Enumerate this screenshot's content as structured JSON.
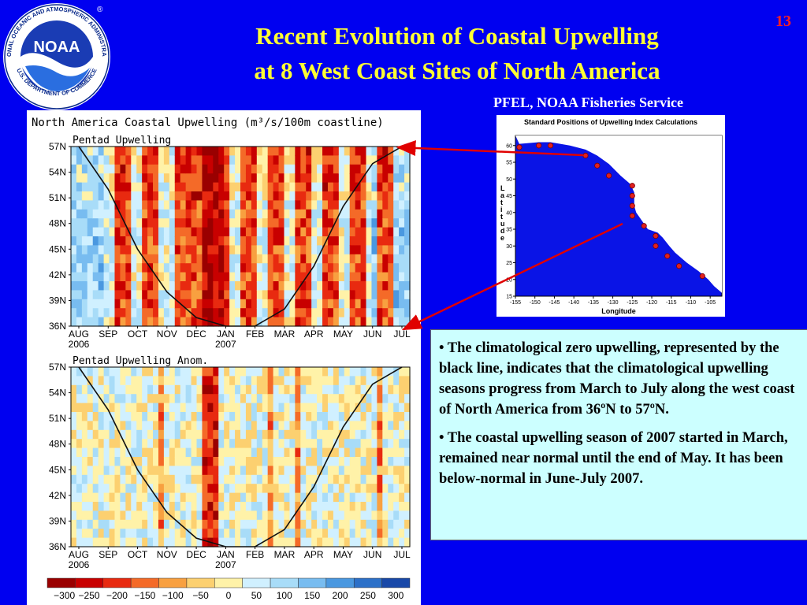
{
  "slide": {
    "title_line1": "Recent Evolution of Coastal Upwelling",
    "title_line2": "at 8 West Coast Sites of North America",
    "number": "13",
    "source": "PFEL, NOAA Fisheries Service"
  },
  "logo": {
    "center_text": "NOAA",
    "ring_top": "NATIONAL OCEANIC AND ATMOSPHERIC ADMINISTRATION",
    "ring_bottom": "U.S. DEPARTMENT OF COMMERCE"
  },
  "text_box": {
    "bullet1": "• The climatological zero upwelling, represented by the black line, indicates that the climatological upwelling seasons progress from March to July along the west coast of North America from 36ºN to 57ºN.",
    "bullet2": "• The coastal upwelling season of 2007 started in March, remained near normal until the end of May. It has been below-normal in June-July 2007."
  },
  "chart_data": [
    {
      "type": "heatmap",
      "title": "North America Coastal Upwelling (m³/s/100m coastline)",
      "subtitle": "Pentad Upwelling",
      "x_tick_labels": [
        "AUG",
        "SEP",
        "OCT",
        "NOV",
        "DEC",
        "JAN",
        "FEB",
        "MAR",
        "APR",
        "MAY",
        "JUN",
        "JUL"
      ],
      "x_year_labels": [
        {
          "month": "AUG",
          "year": "2006"
        },
        {
          "month": "JAN",
          "year": "2007"
        }
      ],
      "y_tick_labels": [
        "57N",
        "54N",
        "51N",
        "48N",
        "45N",
        "42N",
        "39N",
        "36N"
      ],
      "y_values": [
        57,
        54,
        51,
        48,
        45,
        42,
        39,
        36
      ],
      "zero_line_months": {
        "AUG": 57,
        "SEP": 52,
        "OCT": 45,
        "NOV": 40,
        "DEC": 37,
        "JAN": 36,
        "FEB": 36,
        "MAR": 38,
        "APR": 43,
        "MAY": 50,
        "JUN": 55,
        "JUL": 57
      }
    },
    {
      "type": "heatmap",
      "subtitle": "Pentad Upwelling Anom.",
      "x_tick_labels": [
        "AUG",
        "SEP",
        "OCT",
        "NOV",
        "DEC",
        "JAN",
        "FEB",
        "MAR",
        "APR",
        "MAY",
        "JUN",
        "JUL"
      ],
      "x_year_labels": [
        {
          "month": "AUG",
          "year": "2006"
        },
        {
          "month": "JAN",
          "year": "2007"
        }
      ],
      "y_tick_labels": [
        "57N",
        "54N",
        "51N",
        "48N",
        "45N",
        "42N",
        "39N",
        "36N"
      ],
      "y_values": [
        57,
        54,
        51,
        48,
        45,
        42,
        39,
        36
      ]
    },
    {
      "type": "colorbar",
      "tick_labels": [
        "−300",
        "−250",
        "−200",
        "−150",
        "−100",
        "−50",
        "0",
        "50",
        "100",
        "150",
        "200",
        "250",
        "300"
      ],
      "colors": [
        "#9a0000",
        "#c80000",
        "#e82a10",
        "#f46a28",
        "#f8a040",
        "#fcd070",
        "#fff2a8",
        "#d0f0ff",
        "#a8dcf8",
        "#78bcf0",
        "#4a98e0",
        "#2c70c8",
        "#1848a8"
      ]
    },
    {
      "type": "scatter",
      "title": "Standard Positions of Upwelling Index Calculations",
      "xlabel": "Longitude",
      "ylabel": "Latitude",
      "x_ticks": [
        "-155",
        "-150",
        "-145",
        "-140",
        "-135",
        "-130",
        "-125",
        "-120",
        "-115",
        "-110",
        "-105"
      ],
      "y_ticks": [
        "60",
        "55",
        "50",
        "45",
        "40",
        "35",
        "30",
        "25",
        "20",
        "15"
      ],
      "xlim": [
        -155,
        -102
      ],
      "ylim": [
        15,
        63
      ],
      "points": [
        [
          -154,
          59.5
        ],
        [
          -149,
          60
        ],
        [
          -146,
          60
        ],
        [
          -137,
          57
        ],
        [
          -134,
          54
        ],
        [
          -131,
          51
        ],
        [
          -125,
          48
        ],
        [
          -125,
          45
        ],
        [
          -125,
          42
        ],
        [
          -125,
          39
        ],
        [
          -122,
          36
        ],
        [
          -119,
          33
        ],
        [
          -119,
          30
        ],
        [
          -116,
          27
        ],
        [
          -113,
          24
        ],
        [
          -107,
          21
        ]
      ]
    }
  ]
}
